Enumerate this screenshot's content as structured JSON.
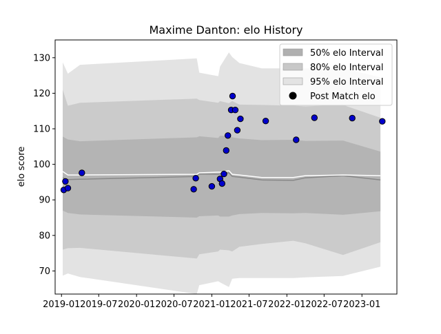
{
  "chart_data": {
    "type": "scatter",
    "title": "Maxime Danton: elo History",
    "xlabel": "",
    "ylabel": "elo score",
    "xlim": [
      "2018-12-01",
      "2023-06-20"
    ],
    "ylim": [
      63.5,
      135
    ],
    "x_ticks": [
      "2019-01",
      "2019-07",
      "2020-01",
      "2020-07",
      "2021-01",
      "2021-07",
      "2022-01",
      "2022-07",
      "2023-01"
    ],
    "y_ticks": [
      70,
      80,
      90,
      100,
      110,
      120,
      130
    ],
    "grid": false,
    "legend_position": "top-right",
    "legend": [
      {
        "label": "50% elo Interval",
        "kind": "patch",
        "color": "#b0b0b0"
      },
      {
        "label": "80% elo Interval",
        "kind": "patch",
        "color": "#c8c8c8"
      },
      {
        "label": "95% elo Interval",
        "kind": "patch",
        "color": "#e3e3e3"
      },
      {
        "label": "Post Match elo",
        "kind": "marker",
        "color": "#000000"
      }
    ],
    "colors": {
      "band_50": "#b4b4b4",
      "band_80": "#cbcbcb",
      "band_95": "#e3e3e3",
      "mean_line": "#888888",
      "point_fill": "#0000cc",
      "point_edge": "#000000"
    },
    "intervals": {
      "dates": [
        "2019-01-07",
        "2019-02-01",
        "2019-04-01",
        "2020-10-20",
        "2020-11-01",
        "2021-02-01",
        "2021-02-10",
        "2021-03-25",
        "2021-04-10",
        "2021-05-15",
        "2021-09-01",
        "2022-02-01",
        "2022-04-01",
        "2022-10-01",
        "2023-04-01"
      ],
      "mean": [
        96.2,
        95.7,
        95.8,
        96.6,
        97.3,
        97.2,
        97.3,
        97.6,
        96.6,
        96.4,
        95.6,
        95.5,
        96.2,
        96.8,
        95.6
      ],
      "q25": [
        87.0,
        86.3,
        85.9,
        85.0,
        85.4,
        85.6,
        85.3,
        85.3,
        85.6,
        86.0,
        86.3,
        86.2,
        86.3,
        85.8,
        86.8
      ],
      "q75": [
        107.8,
        107.0,
        106.5,
        107.6,
        107.9,
        107.4,
        108.0,
        108.1,
        107.6,
        107.3,
        106.8,
        106.9,
        106.6,
        106.7,
        103.6
      ],
      "q10": [
        76.0,
        76.4,
        76.5,
        73.5,
        74.7,
        75.5,
        76.0,
        75.8,
        75.5,
        76.8,
        77.6,
        78.5,
        77.8,
        74.5,
        78.1
      ],
      "q90": [
        121.0,
        116.5,
        117.3,
        118.5,
        118.1,
        117.3,
        117.8,
        117.2,
        117.8,
        116.8,
        116.7,
        116.5,
        116.3,
        116.7,
        113.1
      ],
      "q2_5": [
        68.7,
        69.3,
        68.3,
        63.5,
        66.0,
        67.1,
        66.8,
        65.5,
        67.8,
        68.0,
        68.0,
        68.0,
        68.2,
        68.6,
        71.2
      ],
      "q97_5": [
        128.7,
        125.5,
        128.0,
        129.8,
        125.8,
        124.8,
        127.5,
        131.5,
        130.2,
        128.5,
        127.0,
        127.0,
        127.0,
        127.0,
        124.5
      ],
      "post_match_mean": [
        98.0,
        97.0,
        97.0,
        97.2,
        97.6,
        97.8,
        97.8,
        98.2,
        97.2,
        97.0,
        96.3,
        96.3,
        96.8,
        97.0,
        96.8
      ]
    },
    "post_match_elo": [
      {
        "x": "2019-01-12",
        "y": 92.8
      },
      {
        "x": "2019-01-20",
        "y": 95.2
      },
      {
        "x": "2019-02-01",
        "y": 93.3
      },
      {
        "x": "2019-04-10",
        "y": 97.6
      },
      {
        "x": "2020-10-05",
        "y": 93.0
      },
      {
        "x": "2020-10-15",
        "y": 96.1
      },
      {
        "x": "2021-01-01",
        "y": 93.8
      },
      {
        "x": "2021-02-10",
        "y": 95.9
      },
      {
        "x": "2021-02-20",
        "y": 94.6
      },
      {
        "x": "2021-03-01",
        "y": 97.3
      },
      {
        "x": "2021-03-12",
        "y": 103.9
      },
      {
        "x": "2021-03-20",
        "y": 108.1
      },
      {
        "x": "2021-04-05",
        "y": 115.3
      },
      {
        "x": "2021-04-12",
        "y": 119.2
      },
      {
        "x": "2021-04-25",
        "y": 115.3
      },
      {
        "x": "2021-05-05",
        "y": 109.6
      },
      {
        "x": "2021-05-20",
        "y": 112.8
      },
      {
        "x": "2021-09-20",
        "y": 112.2
      },
      {
        "x": "2022-02-15",
        "y": 106.9
      },
      {
        "x": "2022-05-15",
        "y": 113.1
      },
      {
        "x": "2022-11-15",
        "y": 113.0
      },
      {
        "x": "2023-04-10",
        "y": 112.1
      }
    ]
  }
}
